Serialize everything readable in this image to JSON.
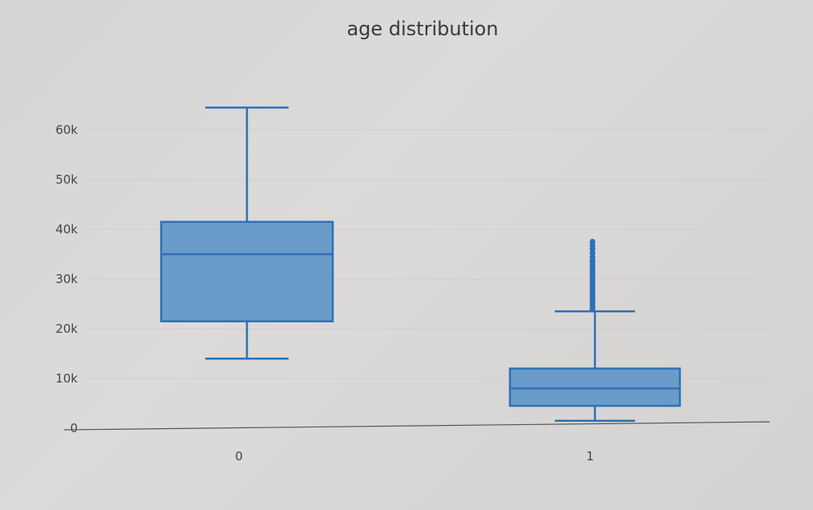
{
  "chart_data": {
    "type": "box",
    "title": "age distribution",
    "xlabel": "",
    "ylabel": "",
    "ylim": [
      0,
      70000
    ],
    "y_ticks": [
      {
        "value": 0,
        "label": "0"
      },
      {
        "value": 10000,
        "label": "10k"
      },
      {
        "value": 20000,
        "label": "20k"
      },
      {
        "value": 30000,
        "label": "30k"
      },
      {
        "value": 40000,
        "label": "40k"
      },
      {
        "value": 50000,
        "label": "50k"
      },
      {
        "value": 60000,
        "label": "60k"
      }
    ],
    "grid": true,
    "legend": "none",
    "color": "#2e6fb8",
    "fill_color": "#6a9ccb",
    "boxes": [
      {
        "category": "0",
        "min": 14000,
        "q1": 21500,
        "median": 35000,
        "q3": 41500,
        "max": 64500,
        "outliers": []
      },
      {
        "category": "1",
        "min": 1500,
        "q1": 4500,
        "median": 8000,
        "q3": 12000,
        "max": 23500,
        "outliers": [
          24000,
          24600,
          25200,
          25800,
          26400,
          27000,
          27600,
          28200,
          28800,
          29400,
          30000,
          30600,
          31200,
          31800,
          32400,
          33000,
          33600,
          34400,
          35200,
          36000,
          36800,
          37500
        ]
      }
    ]
  }
}
